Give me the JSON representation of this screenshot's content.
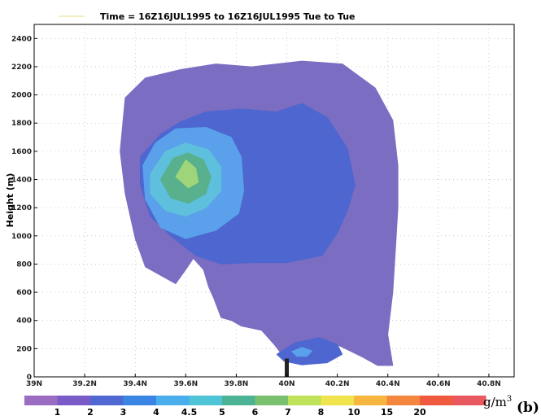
{
  "chart_data": {
    "type": "heatmap",
    "title": "Time = 16Z16JUL1995 to 16Z16JUL1995   Tue to Tue",
    "xlabel": "",
    "ylabel": "Height (m)",
    "xlim": [
      39.0,
      40.9
    ],
    "ylim": [
      0,
      2500
    ],
    "x_ticks": [
      39.0,
      39.2,
      39.4,
      39.6,
      39.8,
      40.0,
      40.2,
      40.4,
      40.6,
      40.8
    ],
    "x_tick_labels": [
      "39N",
      "39.2N",
      "39.4N",
      "39.6N",
      "39.8N",
      "40N",
      "40.2N",
      "40.4N",
      "40.6N",
      "40.8N"
    ],
    "y_ticks": [
      0,
      200,
      400,
      600,
      800,
      1000,
      1200,
      1400,
      1600,
      1800,
      2000,
      2200,
      2400
    ],
    "y_tick_labels": [
      "0",
      "200",
      "400",
      "600",
      "800",
      "1000",
      "1200",
      "1400",
      "1600",
      "1800",
      "2000",
      "2200",
      "2400"
    ],
    "grid": true,
    "colorbar": {
      "units": "g/m",
      "units_superscript": "3",
      "labels": [
        "1",
        "2",
        "3",
        "4",
        "4.5",
        "5",
        "6",
        "7",
        "8",
        "10",
        "15",
        "20"
      ],
      "colors": [
        "#9a6cc2",
        "#7a5cc8",
        "#4f68d2",
        "#3b86e4",
        "#4aaeec",
        "#4fc4d6",
        "#4cb495",
        "#79c16f",
        "#bfe25a",
        "#f0e44e",
        "#f6b640",
        "#f4863e",
        "#ef5a3e",
        "#e8585e"
      ]
    },
    "contour_colors": {
      "level1": "#7b6dc2",
      "level2": "#4d66d0",
      "level3": "#5aa0ea",
      "level4": "#5ec0dc",
      "level5": "#58b08c",
      "level6": "#9ed47a",
      "terrain": "#222222"
    },
    "contours": [
      {
        "level": "1",
        "color_key": "level1",
        "polygons": [
          [
            [
              39.36,
              1980
            ],
            [
              39.44,
              2120
            ],
            [
              39.58,
              2180
            ],
            [
              39.72,
              2220
            ],
            [
              39.86,
              2200
            ],
            [
              40.06,
              2240
            ],
            [
              40.22,
              2220
            ],
            [
              40.35,
              2050
            ],
            [
              40.42,
              1820
            ],
            [
              40.44,
              1500
            ],
            [
              40.44,
              1200
            ],
            [
              40.43,
              900
            ],
            [
              40.42,
              600
            ],
            [
              40.4,
              300
            ],
            [
              40.42,
              80
            ],
            [
              40.36,
              80
            ],
            [
              40.3,
              140
            ],
            [
              40.22,
              210
            ],
            [
              40.16,
              260
            ],
            [
              40.06,
              230
            ],
            [
              39.98,
              160
            ],
            [
              39.95,
              230
            ],
            [
              39.9,
              330
            ],
            [
              39.82,
              360
            ],
            [
              39.78,
              400
            ],
            [
              39.74,
              420
            ],
            [
              39.71,
              560
            ],
            [
              39.69,
              640
            ],
            [
              39.67,
              760
            ],
            [
              39.63,
              840
            ],
            [
              39.6,
              760
            ],
            [
              39.56,
              660
            ],
            [
              39.5,
              720
            ],
            [
              39.44,
              780
            ],
            [
              39.4,
              980
            ],
            [
              39.36,
              1300
            ],
            [
              39.34,
              1600
            ]
          ]
        ]
      },
      {
        "level": "2",
        "color_key": "level2",
        "polygons": [
          [
            [
              39.42,
              1560
            ],
            [
              39.5,
              1720
            ],
            [
              39.58,
              1810
            ],
            [
              39.68,
              1880
            ],
            [
              39.82,
              1900
            ],
            [
              39.96,
              1880
            ],
            [
              40.06,
              1940
            ],
            [
              40.16,
              1840
            ],
            [
              40.24,
              1620
            ],
            [
              40.27,
              1360
            ],
            [
              40.24,
              1180
            ],
            [
              40.2,
              1020
            ],
            [
              40.14,
              860
            ],
            [
              40.0,
              810
            ],
            [
              39.86,
              810
            ],
            [
              39.74,
              800
            ],
            [
              39.64,
              860
            ],
            [
              39.54,
              1000
            ],
            [
              39.46,
              1140
            ],
            [
              39.42,
              1360
            ]
          ],
          [
            [
              39.96,
              160
            ],
            [
              40.03,
              240
            ],
            [
              40.13,
              280
            ],
            [
              40.2,
              230
            ],
            [
              40.22,
              160
            ],
            [
              40.16,
              100
            ],
            [
              40.06,
              85
            ],
            [
              39.99,
              110
            ]
          ]
        ]
      },
      {
        "level": "3",
        "color_key": "level3",
        "polygons": [
          [
            [
              39.43,
              1500
            ],
            [
              39.48,
              1660
            ],
            [
              39.56,
              1760
            ],
            [
              39.68,
              1770
            ],
            [
              39.78,
              1700
            ],
            [
              39.82,
              1560
            ],
            [
              39.83,
              1320
            ],
            [
              39.81,
              1160
            ],
            [
              39.72,
              1040
            ],
            [
              39.6,
              980
            ],
            [
              39.5,
              1060
            ],
            [
              39.44,
              1260
            ]
          ],
          [
            [
              40.02,
              180
            ],
            [
              40.06,
              210
            ],
            [
              40.1,
              185
            ],
            [
              40.08,
              145
            ],
            [
              40.04,
              145
            ]
          ]
        ]
      },
      {
        "level": "4",
        "color_key": "level4",
        "polygons": [
          [
            [
              39.46,
              1440
            ],
            [
              39.52,
              1600
            ],
            [
              39.6,
              1660
            ],
            [
              39.69,
              1610
            ],
            [
              39.74,
              1490
            ],
            [
              39.74,
              1320
            ],
            [
              39.68,
              1200
            ],
            [
              39.6,
              1140
            ],
            [
              39.52,
              1180
            ],
            [
              39.46,
              1300
            ]
          ]
        ]
      },
      {
        "level": "5",
        "color_key": "level5",
        "polygons": [
          [
            [
              39.5,
              1400
            ],
            [
              39.55,
              1550
            ],
            [
              39.61,
              1590
            ],
            [
              39.67,
              1540
            ],
            [
              39.7,
              1420
            ],
            [
              39.68,
              1300
            ],
            [
              39.61,
              1230
            ],
            [
              39.54,
              1270
            ]
          ]
        ]
      },
      {
        "level": "6",
        "color_key": "level6",
        "polygons": [
          [
            [
              39.56,
              1420
            ],
            [
              39.6,
              1540
            ],
            [
              39.64,
              1480
            ],
            [
              39.65,
              1380
            ],
            [
              39.61,
              1340
            ]
          ]
        ]
      }
    ],
    "terrain_marker": {
      "x": 40.0,
      "y_from": 0,
      "y_to": 130
    }
  },
  "panel_label": "(b)"
}
